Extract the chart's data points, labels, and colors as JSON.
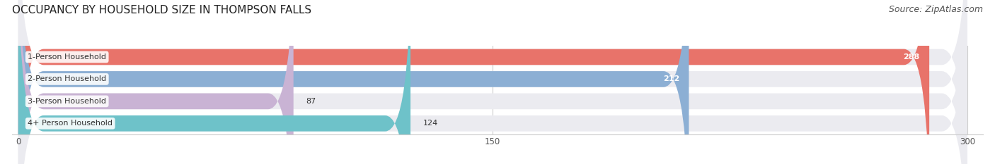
{
  "title": "OCCUPANCY BY HOUSEHOLD SIZE IN THOMPSON FALLS",
  "source": "Source: ZipAtlas.com",
  "categories": [
    "1-Person Household",
    "2-Person Household",
    "3-Person Household",
    "4+ Person Household"
  ],
  "values": [
    288,
    212,
    87,
    124
  ],
  "bar_colors": [
    "#e8736a",
    "#8cafd4",
    "#c9b3d4",
    "#6ec2c9"
  ],
  "bar_label_colors": [
    "white",
    "white",
    "black",
    "black"
  ],
  "xlim": [
    0,
    300
  ],
  "xticks": [
    0,
    150,
    300
  ],
  "title_fontsize": 11,
  "source_fontsize": 9,
  "label_fontsize": 8,
  "value_fontsize": 8,
  "background_color": "#ffffff",
  "bar_background_color": "#ebebf0",
  "bar_height": 0.72
}
